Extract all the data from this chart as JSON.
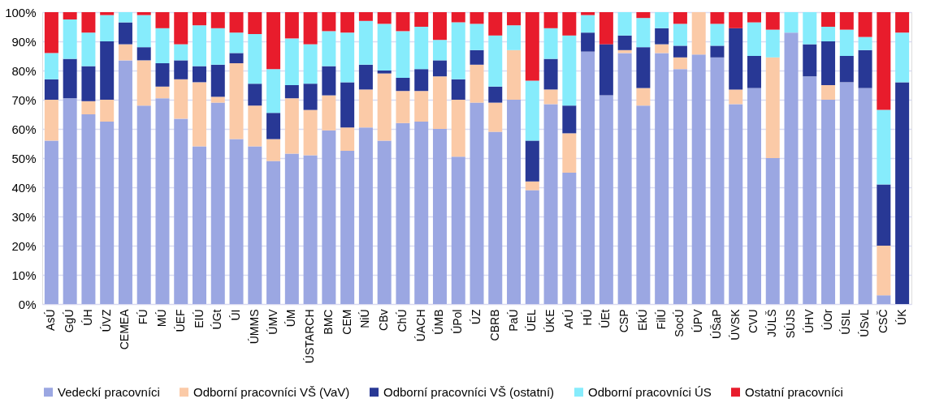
{
  "chart_data": {
    "type": "bar",
    "stacked": true,
    "categories": [
      "AsÚ",
      "GgÚ",
      "ÚH",
      "ÚVZ",
      "CEMEA",
      "FÚ",
      "MÚ",
      "ÚEF",
      "EIÚ",
      "ÚGt",
      "ÚI",
      "ÚMMS",
      "ÚMV",
      "ÚM",
      "ÚSTARCH",
      "BMC",
      "CEM",
      "NiÚ",
      "CBv",
      "ChÚ",
      "ÚACH",
      "ÚMB",
      "ÚPol",
      "ÚZ",
      "CBRB",
      "PaÚ",
      "ÚEL",
      "ÚKE",
      "ArÚ",
      "HÚ",
      "ÚEt",
      "CSP",
      "EkÚ",
      "FilÚ",
      "SocÚ",
      "ÚPV",
      "ÚŠaP",
      "ÚVSK",
      "CVU",
      "JÚLŠ",
      "SÚJS",
      "ÚHV",
      "ÚOr",
      "ÚSIL",
      "ÚSvL",
      "CSČ",
      "ÚK"
    ],
    "series": [
      {
        "name": "Vedeckí pracovníci",
        "color": "#9ba7e2",
        "values": [
          56,
          70.5,
          65,
          62.5,
          83.5,
          68,
          70.5,
          63.5,
          54,
          69,
          56.5,
          54,
          49,
          51.5,
          51,
          59.5,
          52.5,
          60.5,
          56,
          62,
          62.5,
          60,
          50.5,
          69,
          59,
          70,
          39,
          68.5,
          45,
          86.5,
          71.5,
          86,
          68,
          86,
          80.5,
          85.5,
          84.5,
          68.5,
          74,
          50,
          93,
          78,
          70,
          76,
          74,
          3,
          0
        ]
      },
      {
        "name": "Odborní pracovníci VŠ (VaV)",
        "color": "#fbcaa7",
        "values": [
          14,
          0,
          4.5,
          7.5,
          5.5,
          15.5,
          4,
          13.5,
          22,
          2,
          26,
          14,
          7.5,
          19,
          15.5,
          12,
          8,
          13,
          23,
          11,
          10.5,
          18,
          19.5,
          13,
          10,
          17,
          3,
          5,
          13.5,
          0,
          0,
          1,
          6,
          3,
          4,
          14.5,
          0,
          5,
          0,
          34.5,
          0,
          0,
          5,
          0,
          0,
          17,
          0
        ]
      },
      {
        "name": "Odborní pracovníci VŠ (ostatní)",
        "color": "#283895",
        "values": [
          7,
          13.5,
          12,
          20,
          7.5,
          4.5,
          8,
          6.5,
          5.5,
          11,
          3.5,
          7.5,
          9,
          4.5,
          9,
          10,
          15.5,
          8.5,
          1,
          4.5,
          7.5,
          5.5,
          7,
          5,
          5.5,
          0,
          14,
          10.5,
          9.5,
          6.5,
          17.5,
          5,
          14,
          5.5,
          4,
          0,
          4,
          21,
          11,
          0,
          0,
          11,
          15,
          9,
          13,
          21,
          76
        ]
      },
      {
        "name": "Odborní pracovníci ÚS",
        "color": "#86ecfc",
        "values": [
          9,
          13.5,
          11.5,
          9,
          3.5,
          11,
          12,
          5.5,
          14,
          12.5,
          7,
          17,
          15,
          16,
          13.5,
          12,
          17,
          15,
          16,
          16,
          14.5,
          7,
          19.5,
          9,
          17.5,
          8.5,
          20.5,
          10.5,
          24,
          6,
          0,
          8,
          10,
          5.5,
          7.5,
          0,
          7.5,
          0,
          11.5,
          9.5,
          7,
          11,
          5,
          9,
          4.5,
          25.5,
          17
        ]
      },
      {
        "name": "Ostatní pracovníci",
        "color": "#e81c2c",
        "values": [
          14,
          2.5,
          7,
          1,
          0,
          1,
          5.5,
          11,
          4.5,
          5.5,
          7,
          7.5,
          19.5,
          9,
          11,
          6.5,
          7,
          3,
          4,
          6.5,
          5,
          9.5,
          3.5,
          4,
          8,
          4.5,
          23.5,
          5.5,
          8,
          1,
          11,
          0,
          2,
          0,
          4,
          0,
          4,
          5.5,
          3.5,
          6,
          0,
          0,
          5,
          6,
          8.5,
          33.5,
          7
        ]
      }
    ],
    "ylim": [
      0,
      100
    ],
    "yticks": [
      {
        "value": 0,
        "label": "0%"
      },
      {
        "value": 10,
        "label": "10%"
      },
      {
        "value": 20,
        "label": "20%"
      },
      {
        "value": 30,
        "label": "30%"
      },
      {
        "value": 40,
        "label": "40%"
      },
      {
        "value": 50,
        "label": "50%"
      },
      {
        "value": 60,
        "label": "60%"
      },
      {
        "value": 70,
        "label": "70%"
      },
      {
        "value": 80,
        "label": "80%"
      },
      {
        "value": 90,
        "label": "90%"
      },
      {
        "value": 100,
        "label": "100%"
      }
    ],
    "grid": "y",
    "legend": "bottom"
  }
}
